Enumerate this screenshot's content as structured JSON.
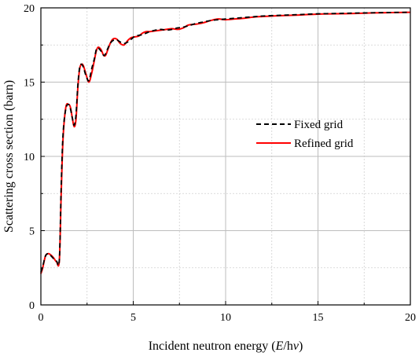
{
  "chart_data": {
    "type": "line",
    "xlabel_parts": [
      "Incident neutron energy (",
      "E",
      "/h",
      "ν",
      ")"
    ],
    "ylabel": "Scattering cross section (barn)",
    "xlim": [
      0,
      20
    ],
    "ylim": [
      0,
      20
    ],
    "xticks": [
      0,
      5,
      10,
      15,
      20
    ],
    "yticks": [
      0,
      5,
      10,
      15,
      20
    ],
    "grid": true,
    "legend_position": "center-right",
    "series": [
      {
        "name": "Fixed grid",
        "color": "#000000",
        "style": "dashed",
        "x": [
          0.0,
          0.1,
          0.25,
          0.4,
          0.55,
          0.7,
          0.85,
          1.0,
          1.1,
          1.2,
          1.35,
          1.5,
          1.6,
          1.7,
          1.8,
          1.9,
          2.0,
          2.1,
          2.2,
          2.3,
          2.45,
          2.6,
          2.75,
          2.9,
          3.0,
          3.1,
          3.25,
          3.4,
          3.5,
          3.6,
          3.75,
          3.9,
          4.1,
          4.3,
          4.5,
          4.7,
          4.9,
          5.1,
          5.3,
          5.5,
          5.7,
          5.9,
          6.2,
          6.5,
          6.8,
          7.1,
          7.4,
          7.7,
          8.0,
          8.4,
          8.8,
          9.2,
          9.6,
          10.0,
          10.5,
          11.0,
          11.5,
          12.0,
          13.0,
          14.0,
          15.0,
          16.0,
          17.0,
          18.0,
          19.0,
          20.0
        ],
        "y": [
          2.2,
          2.6,
          3.3,
          3.45,
          3.3,
          3.1,
          2.95,
          3.05,
          8.0,
          11.5,
          13.2,
          13.5,
          13.2,
          12.6,
          12.1,
          12.8,
          14.8,
          16.0,
          16.2,
          16.0,
          15.4,
          15.1,
          15.9,
          16.6,
          17.2,
          17.3,
          17.1,
          16.8,
          16.9,
          17.2,
          17.6,
          17.8,
          17.85,
          17.7,
          17.6,
          17.7,
          17.9,
          18.1,
          18.15,
          18.2,
          18.3,
          18.4,
          18.5,
          18.55,
          18.5,
          18.55,
          18.65,
          18.7,
          18.8,
          18.95,
          19.05,
          19.15,
          19.2,
          19.25,
          19.3,
          19.35,
          19.4,
          19.45,
          19.5,
          19.55,
          19.6,
          19.62,
          19.65,
          19.67,
          19.69,
          19.7
        ]
      },
      {
        "name": "Refined grid",
        "color": "#ff0000",
        "style": "solid",
        "x": [
          0.0,
          0.1,
          0.25,
          0.4,
          0.55,
          0.7,
          0.85,
          1.0,
          1.1,
          1.2,
          1.35,
          1.5,
          1.6,
          1.7,
          1.8,
          1.9,
          2.0,
          2.1,
          2.2,
          2.3,
          2.45,
          2.6,
          2.75,
          2.9,
          3.0,
          3.1,
          3.25,
          3.4,
          3.5,
          3.6,
          3.75,
          3.9,
          4.1,
          4.3,
          4.5,
          4.7,
          4.9,
          5.1,
          5.3,
          5.5,
          5.7,
          5.9,
          6.2,
          6.5,
          6.8,
          7.1,
          7.4,
          7.7,
          8.0,
          8.4,
          8.8,
          9.2,
          9.6,
          10.0,
          10.5,
          11.0,
          11.5,
          12.0,
          13.0,
          14.0,
          15.0,
          16.0,
          17.0,
          18.0,
          19.0,
          20.0
        ],
        "y": [
          2.1,
          2.5,
          3.3,
          3.45,
          3.35,
          3.15,
          2.9,
          3.0,
          7.5,
          11.2,
          13.3,
          13.5,
          13.3,
          12.6,
          12.0,
          12.5,
          14.6,
          15.9,
          16.2,
          16.1,
          15.5,
          15.0,
          15.6,
          16.5,
          17.1,
          17.35,
          17.2,
          16.8,
          16.8,
          17.1,
          17.6,
          17.9,
          17.9,
          17.6,
          17.5,
          17.8,
          18.0,
          18.05,
          18.1,
          18.3,
          18.4,
          18.4,
          18.45,
          18.5,
          18.55,
          18.6,
          18.55,
          18.65,
          18.85,
          18.9,
          19.0,
          19.15,
          19.25,
          19.2,
          19.25,
          19.3,
          19.38,
          19.42,
          19.48,
          19.52,
          19.58,
          19.6,
          19.62,
          19.66,
          19.68,
          19.7
        ]
      }
    ]
  }
}
